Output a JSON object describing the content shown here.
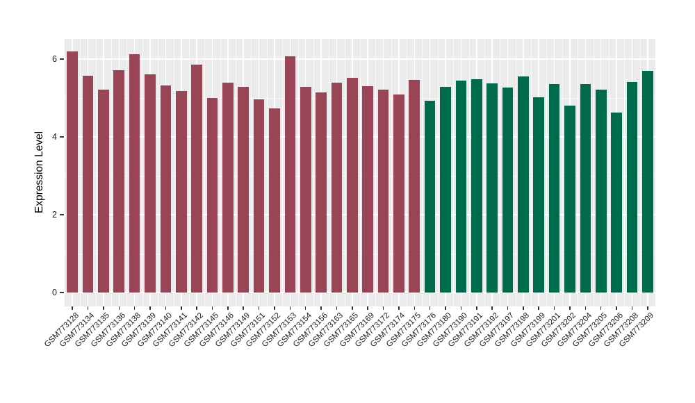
{
  "figure": {
    "background": "#FFFFFF",
    "panel_background": "#EBEBEB",
    "gridline_color": "#FFFFFF",
    "tick_color": "#333333",
    "label_color": "#1A1A1A"
  },
  "chart_data": {
    "type": "bar",
    "ylabel": "Expression Level",
    "xlabel": "",
    "ylim": [
      0,
      6.52
    ],
    "yticks": [
      0,
      2,
      4,
      6
    ],
    "ytick_labels": [
      "0",
      "2",
      "4",
      "6"
    ],
    "yticks_minor": [
      1,
      3,
      5
    ],
    "grid": true,
    "legend": false,
    "categories": [
      "GSM773128",
      "GSM773134",
      "GSM773135",
      "GSM773136",
      "GSM773138",
      "GSM773139",
      "GSM773140",
      "GSM773141",
      "GSM773142",
      "GSM773145",
      "GSM773146",
      "GSM773149",
      "GSM773151",
      "GSM773152",
      "GSM773153",
      "GSM773154",
      "GSM773156",
      "GSM773163",
      "GSM773165",
      "GSM773169",
      "GSM773172",
      "GSM773174",
      "GSM773175",
      "GSM773176",
      "GSM773180",
      "GSM773190",
      "GSM773191",
      "GSM773192",
      "GSM773197",
      "GSM773198",
      "GSM773199",
      "GSM773201",
      "GSM773202",
      "GSM773204",
      "GSM773205",
      "GSM773206",
      "GSM773208",
      "GSM773209"
    ],
    "values": [
      6.2,
      5.57,
      5.22,
      5.72,
      6.12,
      5.61,
      5.32,
      5.17,
      5.85,
      5.0,
      5.4,
      5.28,
      4.97,
      4.73,
      6.07,
      5.29,
      5.15,
      5.4,
      5.52,
      5.31,
      5.22,
      5.09,
      5.46,
      4.93,
      5.29,
      5.45,
      5.49,
      5.38,
      5.27,
      5.55,
      5.02,
      5.35,
      4.8,
      5.36,
      5.22,
      4.62,
      5.41,
      5.69
    ],
    "groups": [
      {
        "name": "group-1",
        "color": "#9A4556",
        "from": 0,
        "to": 22
      },
      {
        "name": "group-2",
        "color": "#006B4C",
        "from": 23,
        "to": 37
      }
    ]
  }
}
